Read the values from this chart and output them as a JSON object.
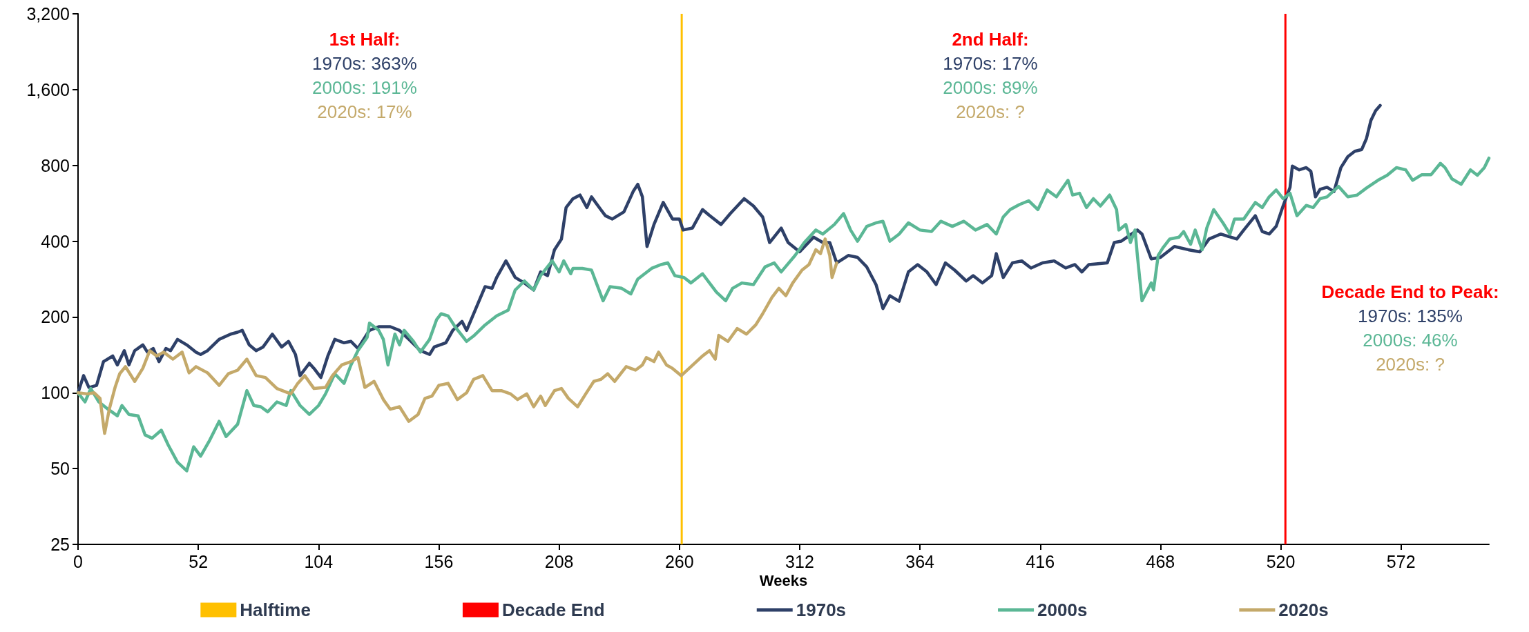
{
  "chart_data": {
    "type": "line",
    "xlabel": "Weeks",
    "xlim": [
      0,
      610
    ],
    "xticks": [
      0,
      52,
      104,
      156,
      208,
      260,
      312,
      364,
      416,
      468,
      520,
      572
    ],
    "ylim": [
      25,
      3200
    ],
    "yticks": [
      25,
      50,
      100,
      200,
      400,
      800,
      {
        "value": 1600,
        "label": "1,600"
      },
      {
        "value": 3200,
        "label": "3,200"
      }
    ],
    "log": "y",
    "legend": "bottom",
    "ref_lines": [
      {
        "axis": "x",
        "value": 261,
        "label": "Halftime",
        "color": "#ffc000"
      },
      {
        "axis": "x",
        "value": 522,
        "label": "Decade End",
        "color": "#ff0000"
      }
    ],
    "series": [
      {
        "name": "1970s",
        "color": "#2e4068",
        "x": [
          0,
          2.4,
          4.7,
          8,
          11,
          15,
          17,
          20,
          22,
          24.5,
          28,
          30,
          32.5,
          35,
          38,
          40,
          43,
          47,
          51,
          53,
          56,
          61,
          66,
          69,
          71,
          74,
          77,
          80,
          84,
          88,
          91,
          94,
          96,
          100,
          102,
          105,
          108,
          111,
          115,
          118,
          121,
          126,
          130,
          135,
          139,
          144,
          148,
          152,
          154,
          159,
          162,
          166,
          168,
          172,
          176,
          179,
          181,
          185,
          189,
          193,
          197,
          200,
          203,
          206,
          209,
          211,
          214,
          217,
          220,
          222,
          226,
          228,
          231,
          236,
          240,
          242,
          244,
          246,
          249,
          253,
          257,
          260,
          261.6,
          265.6,
          270,
          273,
          278,
          282,
          288,
          292,
          296,
          299,
          304,
          307,
          312,
          318,
          322,
          325,
          328,
          333,
          337,
          341,
          345,
          348,
          351,
          355,
          359,
          363,
          367,
          371,
          375,
          379,
          384,
          387,
          391,
          395,
          397,
          400,
          404,
          408,
          412,
          417,
          422,
          427,
          431,
          434,
          437,
          445,
          448,
          451,
          458,
          460,
          464,
          468,
          474,
          480,
          485,
          489,
          494,
          501,
          504,
          509,
          512,
          515,
          518,
          521,
          524,
          525,
          528,
          531,
          533,
          535,
          537,
          540,
          543,
          546,
          549,
          552,
          555,
          557,
          559,
          561,
          563
        ],
        "values": [
          100,
          117,
          105,
          107,
          133,
          140,
          129,
          147,
          129,
          147,
          155,
          145,
          150,
          133,
          150,
          147,
          163,
          155,
          145,
          142,
          147,
          163,
          171,
          174,
          177,
          155,
          147,
          152,
          171,
          152,
          160,
          142,
          117,
          131,
          125,
          115,
          140,
          163,
          158,
          160,
          150,
          177,
          183,
          183,
          177,
          160,
          147,
          142,
          152,
          158,
          177,
          192,
          177,
          216,
          264,
          260,
          287,
          334,
          287,
          273,
          256,
          302,
          292,
          370,
          408,
          544,
          590,
          610,
          544,
          600,
          534,
          505,
          490,
          523,
          630,
          673,
          600,
          381,
          466,
          570,
          490,
          490,
          443,
          451,
          534,
          506,
          466,
          515,
          590,
          552,
          499,
          395,
          451,
          395,
          363,
          415,
          395,
          395,
          328,
          351,
          345,
          316,
          269,
          216,
          243,
          231,
          302,
          323,
          302,
          269,
          328,
          307,
          278,
          292,
          273,
          292,
          357,
          287,
          328,
          334,
          313,
          328,
          334,
          313,
          323,
          302,
          323,
          328,
          395,
          400,
          443,
          427,
          340,
          345,
          381,
          370,
          363,
          408,
          427,
          408,
          443,
          505,
          437,
          427,
          458,
          552,
          655,
          795,
          768,
          784,
          758,
          600,
          643,
          655,
          630,
          784,
          867,
          910,
          925,
          1020,
          1210,
          1318,
          1384
        ]
      },
      {
        "name": "2000s",
        "color": "#5bb795",
        "x": [
          0,
          3,
          5.5,
          9,
          13,
          17,
          19,
          22,
          26,
          29,
          32,
          36,
          39,
          43,
          47,
          50,
          53,
          57,
          61,
          64,
          69,
          73,
          76,
          79,
          82,
          86,
          90,
          92,
          96,
          100,
          104,
          107,
          111,
          115,
          118,
          121,
          125,
          126,
          130,
          132,
          134,
          137,
          139,
          141,
          145,
          148,
          152,
          155,
          157,
          160,
          163,
          168,
          171,
          176,
          181,
          186,
          189,
          193,
          197,
          200,
          205,
          208,
          210,
          213,
          214,
          218,
          222,
          227,
          230,
          235,
          239,
          242,
          248,
          252,
          255,
          258,
          262,
          265,
          270,
          276,
          280,
          283,
          287,
          292,
          297,
          301,
          304,
          310,
          314,
          319,
          322,
          327,
          331,
          334,
          337,
          341,
          345,
          348,
          351,
          355,
          359,
          364,
          369,
          373,
          378,
          383,
          388,
          393,
          397,
          400,
          403,
          407,
          411,
          415,
          419,
          423,
          428,
          430,
          433,
          436,
          439,
          442,
          446,
          449,
          450,
          453,
          455,
          457,
          458,
          460,
          464,
          465,
          467,
          469,
          472,
          476,
          478,
          481,
          483,
          486,
          488,
          491,
          495,
          498,
          500,
          504,
          509,
          512,
          515,
          518,
          521,
          524,
          527,
          531,
          534,
          537,
          540,
          545,
          549,
          553,
          557,
          562,
          566,
          570,
          574,
          577,
          581,
          585,
          589,
          591,
          594,
          598,
          602,
          605,
          608,
          610
        ],
        "values": [
          100,
          92,
          104,
          92,
          86,
          81,
          89,
          82,
          81,
          68,
          66,
          71,
          62,
          53,
          49,
          61,
          56,
          65,
          77,
          67,
          75,
          102,
          89,
          88,
          84,
          92,
          89,
          102,
          89,
          82,
          89,
          99,
          119,
          109,
          129,
          147,
          166,
          189,
          177,
          163,
          129,
          171,
          155,
          177,
          160,
          145,
          163,
          195,
          206,
          202,
          183,
          160,
          168,
          186,
          202,
          213,
          256,
          278,
          256,
          292,
          334,
          302,
          334,
          297,
          312,
          312,
          307,
          232,
          264,
          260,
          247,
          283,
          312,
          323,
          328,
          292,
          287,
          273,
          297,
          251,
          232,
          260,
          273,
          269,
          316,
          328,
          302,
          351,
          395,
          443,
          427,
          466,
          515,
          443,
          400,
          458,
          473,
          480,
          400,
          427,
          473,
          443,
          437,
          480,
          458,
          480,
          443,
          466,
          427,
          499,
          534,
          559,
          579,
          534,
          639,
          600,
          698,
          610,
          620,
          544,
          590,
          552,
          610,
          534,
          443,
          466,
          395,
          443,
          351,
          232,
          273,
          256,
          351,
          376,
          408,
          415,
          437,
          389,
          443,
          370,
          451,
          534,
          473,
          427,
          490,
          490,
          570,
          544,
          600,
          639,
          590,
          620,
          505,
          555,
          544,
          590,
          600,
          660,
          600,
          610,
          650,
          698,
          731,
          784,
          768,
          698,
          735,
          735,
          815,
          784,
          707,
          673,
          768,
          731,
          784,
          855
        ]
      },
      {
        "name": "2020s",
        "color": "#c4a96a",
        "x": [
          0,
          4,
          7,
          9.5,
          11.5,
          13.5,
          16,
          18,
          20.5,
          24.5,
          28,
          31,
          34,
          37,
          41,
          45,
          48,
          51,
          56,
          61,
          65,
          69,
          73,
          77,
          81,
          86,
          92,
          95,
          98,
          102,
          107,
          110,
          114,
          118,
          121,
          124,
          128,
          132,
          135,
          139,
          143,
          147,
          150,
          153,
          156,
          160,
          164,
          168,
          171,
          175,
          179,
          183,
          187,
          190,
          194,
          197,
          200,
          202,
          206,
          209,
          212,
          216,
          219.5,
          223,
          226,
          229,
          232,
          237,
          241,
          244,
          245.7,
          249,
          251,
          254.4,
          257,
          260.8,
          265,
          270,
          273,
          275.5,
          277,
          281,
          285,
          289,
          293,
          296,
          300,
          303,
          306,
          309,
          313,
          316,
          319,
          321,
          323,
          325,
          326,
          328
        ],
        "values": [
          100,
          99,
          100,
          95,
          69,
          86,
          105,
          119,
          127,
          111,
          125,
          147,
          140,
          145,
          136,
          145,
          120,
          127,
          120,
          107,
          119,
          123,
          136,
          117,
          115,
          104,
          99,
          109,
          117,
          104,
          105,
          117,
          129,
          133,
          138,
          105,
          111,
          94,
          86,
          88,
          77,
          82,
          95,
          97,
          107,
          109,
          94,
          100,
          113,
          117,
          102,
          102,
          99,
          94,
          99,
          88,
          97,
          89,
          102,
          104,
          95,
          88,
          99,
          111,
          113,
          119,
          111,
          127,
          123,
          129,
          138,
          133,
          145,
          129,
          125,
          117,
          127,
          140,
          147,
          136,
          169,
          160,
          180,
          171,
          186,
          206,
          239,
          260,
          243,
          273,
          307,
          323,
          370,
          357,
          408,
          351,
          287,
          328
        ]
      }
    ],
    "annotations": [
      "1st Half:",
      "1970s: 363%",
      "2000s: 191%",
      "2020s: 17%",
      "2nd Half:",
      "1970s: 17%",
      "2000s: 89%",
      "2020s: ?",
      "Decade End to Peak:",
      "1970s: 135%",
      "2000s: 46%",
      "2020s: ?"
    ]
  }
}
